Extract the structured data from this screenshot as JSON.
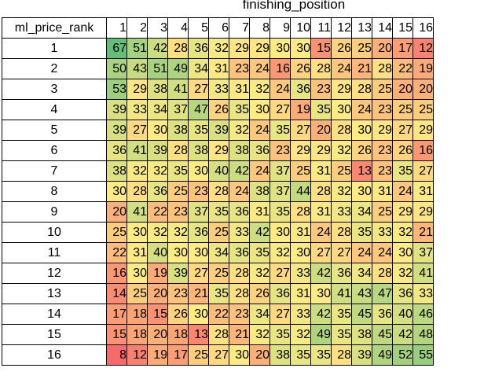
{
  "chart_data": {
    "type": "heatmap",
    "column_axis_label": "finishing_position",
    "row_axis_label": "ml_price_rank",
    "columns": [
      "1",
      "2",
      "3",
      "4",
      "5",
      "6",
      "7",
      "8",
      "9",
      "10",
      "11",
      "12",
      "13",
      "14",
      "15",
      "16"
    ],
    "rows": [
      "1",
      "2",
      "3",
      "4",
      "5",
      "6",
      "7",
      "8",
      "9",
      "10",
      "11",
      "12",
      "13",
      "14",
      "15",
      "16"
    ],
    "values": [
      [
        67,
        51,
        42,
        28,
        36,
        32,
        29,
        29,
        30,
        30,
        15,
        26,
        25,
        20,
        17,
        12
      ],
      [
        50,
        43,
        51,
        49,
        34,
        31,
        23,
        24,
        16,
        26,
        28,
        24,
        21,
        28,
        22,
        19
      ],
      [
        53,
        29,
        38,
        41,
        27,
        33,
        31,
        32,
        24,
        36,
        23,
        29,
        28,
        25,
        20,
        20
      ],
      [
        39,
        33,
        34,
        37,
        47,
        26,
        35,
        30,
        27,
        19,
        35,
        30,
        24,
        23,
        25,
        25
      ],
      [
        39,
        27,
        30,
        38,
        35,
        39,
        32,
        24,
        35,
        27,
        20,
        28,
        30,
        29,
        27,
        29
      ],
      [
        36,
        41,
        39,
        28,
        38,
        29,
        38,
        36,
        23,
        29,
        29,
        32,
        26,
        23,
        26,
        16
      ],
      [
        38,
        32,
        32,
        35,
        30,
        40,
        42,
        24,
        37,
        25,
        31,
        25,
        13,
        23,
        35,
        27
      ],
      [
        30,
        28,
        36,
        25,
        23,
        28,
        24,
        38,
        37,
        44,
        28,
        32,
        30,
        31,
        24,
        31
      ],
      [
        20,
        41,
        22,
        23,
        37,
        35,
        36,
        31,
        35,
        28,
        31,
        33,
        34,
        25,
        29,
        29
      ],
      [
        25,
        30,
        32,
        32,
        36,
        25,
        33,
        42,
        30,
        31,
        24,
        28,
        35,
        33,
        32,
        21
      ],
      [
        22,
        31,
        40,
        30,
        30,
        34,
        36,
        35,
        32,
        30,
        27,
        27,
        24,
        24,
        30,
        37
      ],
      [
        16,
        30,
        19,
        39,
        27,
        25,
        28,
        32,
        27,
        33,
        42,
        36,
        34,
        28,
        32,
        41
      ],
      [
        14,
        25,
        20,
        23,
        21,
        35,
        28,
        26,
        36,
        31,
        30,
        41,
        43,
        47,
        36,
        33
      ],
      [
        17,
        18,
        15,
        26,
        30,
        22,
        23,
        34,
        27,
        33,
        42,
        35,
        45,
        36,
        40,
        46
      ],
      [
        15,
        18,
        20,
        18,
        13,
        28,
        21,
        32,
        35,
        32,
        49,
        35,
        38,
        45,
        42,
        48
      ],
      [
        8,
        12,
        19,
        17,
        25,
        27,
        30,
        20,
        38,
        35,
        35,
        28,
        39,
        49,
        52,
        55
      ]
    ],
    "color_scale": {
      "low": "#f8696b",
      "mid": "#ffeb84",
      "high": "#63be7b"
    }
  }
}
